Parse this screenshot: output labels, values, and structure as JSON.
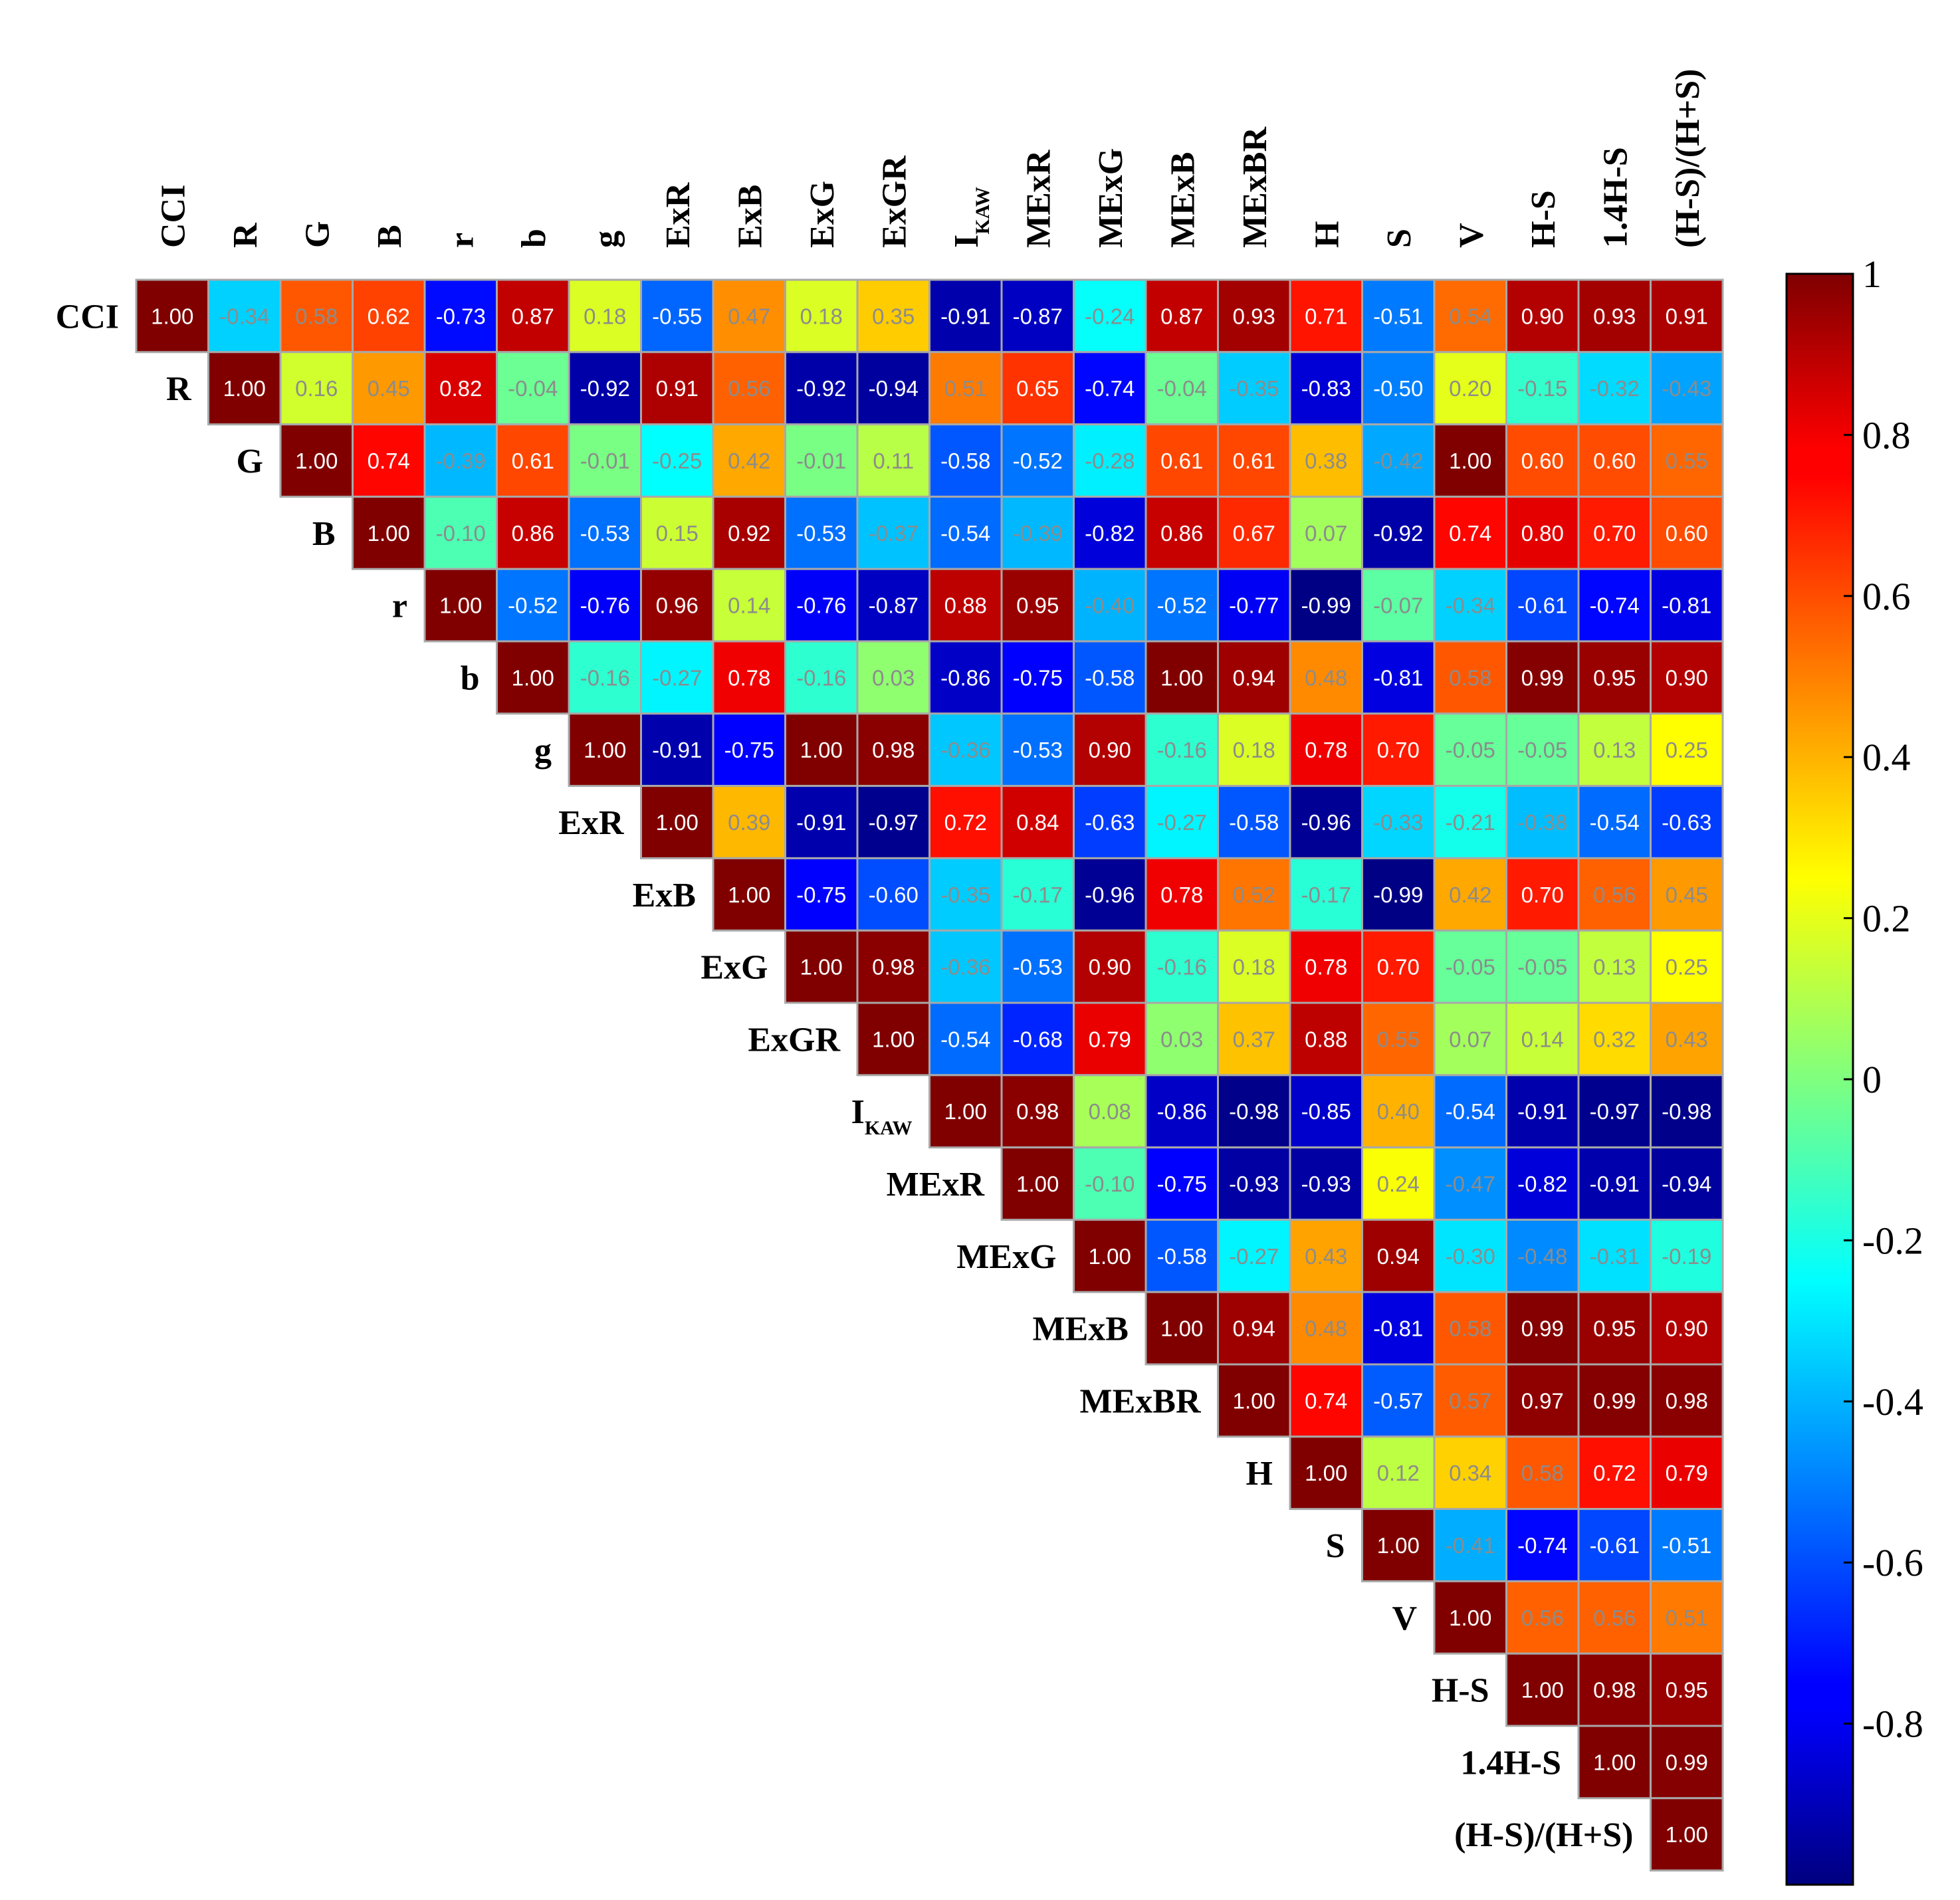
{
  "chart_data": {
    "type": "heatmap",
    "variables": [
      "CCI",
      "R",
      "G",
      "B",
      "r",
      "b",
      "g",
      "ExR",
      "ExB",
      "ExG",
      "ExGR",
      "I|KAW",
      "MExR",
      "MExG",
      "MExB",
      "MExBR",
      "H",
      "S",
      "V",
      "H-S",
      "1.4H-S",
      "(H-S)/(H+S)"
    ],
    "matrix": [
      [
        1.0,
        -0.34,
        0.58,
        0.62,
        -0.73,
        0.87,
        0.18,
        -0.55,
        0.47,
        0.18,
        0.35,
        -0.91,
        -0.87,
        -0.24,
        0.87,
        0.93,
        0.71,
        -0.51,
        0.54,
        0.9,
        0.93,
        0.91
      ],
      [
        null,
        1.0,
        0.16,
        0.45,
        0.82,
        -0.04,
        -0.92,
        0.91,
        0.56,
        -0.92,
        -0.94,
        0.51,
        0.65,
        -0.74,
        -0.04,
        -0.35,
        -0.83,
        -0.5,
        0.2,
        -0.15,
        -0.32,
        -0.43
      ],
      [
        null,
        null,
        1.0,
        0.74,
        -0.39,
        0.61,
        -0.01,
        -0.25,
        0.42,
        -0.01,
        0.11,
        -0.58,
        -0.52,
        -0.28,
        0.61,
        0.61,
        0.38,
        -0.42,
        1.0,
        0.6,
        0.6,
        0.55
      ],
      [
        null,
        null,
        null,
        1.0,
        -0.1,
        0.86,
        -0.53,
        0.15,
        0.92,
        -0.53,
        -0.37,
        -0.54,
        -0.39,
        -0.82,
        0.86,
        0.67,
        0.07,
        -0.92,
        0.74,
        0.8,
        0.7,
        0.6
      ],
      [
        null,
        null,
        null,
        null,
        1.0,
        -0.52,
        -0.76,
        0.96,
        0.14,
        -0.76,
        -0.87,
        0.88,
        0.95,
        -0.4,
        -0.52,
        -0.77,
        -0.99,
        -0.07,
        -0.34,
        -0.61,
        -0.74,
        -0.81
      ],
      [
        null,
        null,
        null,
        null,
        null,
        1.0,
        -0.16,
        -0.27,
        0.78,
        -0.16,
        0.03,
        -0.86,
        -0.75,
        -0.58,
        1.0,
        0.94,
        0.48,
        -0.81,
        0.58,
        0.99,
        0.95,
        0.9
      ],
      [
        null,
        null,
        null,
        null,
        null,
        null,
        1.0,
        -0.91,
        -0.75,
        1.0,
        0.98,
        -0.36,
        -0.53,
        0.9,
        -0.16,
        0.18,
        0.78,
        0.7,
        -0.05,
        -0.05,
        0.13,
        0.25
      ],
      [
        null,
        null,
        null,
        null,
        null,
        null,
        null,
        1.0,
        0.39,
        -0.91,
        -0.97,
        0.72,
        0.84,
        -0.63,
        -0.27,
        -0.58,
        -0.96,
        -0.33,
        -0.21,
        -0.38,
        -0.54,
        -0.63
      ],
      [
        null,
        null,
        null,
        null,
        null,
        null,
        null,
        null,
        1.0,
        -0.75,
        -0.6,
        -0.35,
        -0.17,
        -0.96,
        0.78,
        0.52,
        -0.17,
        -0.99,
        0.42,
        0.7,
        0.56,
        0.45
      ],
      [
        null,
        null,
        null,
        null,
        null,
        null,
        null,
        null,
        null,
        1.0,
        0.98,
        -0.36,
        -0.53,
        0.9,
        -0.16,
        0.18,
        0.78,
        0.7,
        -0.05,
        -0.05,
        0.13,
        0.25
      ],
      [
        null,
        null,
        null,
        null,
        null,
        null,
        null,
        null,
        null,
        null,
        1.0,
        -0.54,
        -0.68,
        0.79,
        0.03,
        0.37,
        0.88,
        0.55,
        0.07,
        0.14,
        0.32,
        0.43
      ],
      [
        null,
        null,
        null,
        null,
        null,
        null,
        null,
        null,
        null,
        null,
        null,
        1.0,
        0.98,
        0.08,
        -0.86,
        -0.98,
        -0.85,
        0.4,
        -0.54,
        -0.91,
        -0.97,
        -0.98
      ],
      [
        null,
        null,
        null,
        null,
        null,
        null,
        null,
        null,
        null,
        null,
        null,
        null,
        1.0,
        -0.1,
        -0.75,
        -0.93,
        -0.93,
        0.24,
        -0.47,
        -0.82,
        -0.91,
        -0.94
      ],
      [
        null,
        null,
        null,
        null,
        null,
        null,
        null,
        null,
        null,
        null,
        null,
        null,
        null,
        1.0,
        -0.58,
        -0.27,
        0.43,
        0.94,
        -0.3,
        -0.48,
        -0.31,
        -0.19
      ],
      [
        null,
        null,
        null,
        null,
        null,
        null,
        null,
        null,
        null,
        null,
        null,
        null,
        null,
        null,
        1.0,
        0.94,
        0.48,
        -0.81,
        0.58,
        0.99,
        0.95,
        0.9
      ],
      [
        null,
        null,
        null,
        null,
        null,
        null,
        null,
        null,
        null,
        null,
        null,
        null,
        null,
        null,
        null,
        1.0,
        0.74,
        -0.57,
        0.57,
        0.97,
        0.99,
        0.98
      ],
      [
        null,
        null,
        null,
        null,
        null,
        null,
        null,
        null,
        null,
        null,
        null,
        null,
        null,
        null,
        null,
        null,
        1.0,
        0.12,
        0.34,
        0.58,
        0.72,
        0.79
      ],
      [
        null,
        null,
        null,
        null,
        null,
        null,
        null,
        null,
        null,
        null,
        null,
        null,
        null,
        null,
        null,
        null,
        null,
        1.0,
        -0.41,
        -0.74,
        -0.61,
        -0.51
      ],
      [
        null,
        null,
        null,
        null,
        null,
        null,
        null,
        null,
        null,
        null,
        null,
        null,
        null,
        null,
        null,
        null,
        null,
        null,
        1.0,
        0.56,
        0.56,
        0.51
      ],
      [
        null,
        null,
        null,
        null,
        null,
        null,
        null,
        null,
        null,
        null,
        null,
        null,
        null,
        null,
        null,
        null,
        null,
        null,
        null,
        1.0,
        0.98,
        0.95
      ],
      [
        null,
        null,
        null,
        null,
        null,
        null,
        null,
        null,
        null,
        null,
        null,
        null,
        null,
        null,
        null,
        null,
        null,
        null,
        null,
        null,
        1.0,
        0.99
      ],
      [
        null,
        null,
        null,
        null,
        null,
        null,
        null,
        null,
        null,
        null,
        null,
        null,
        null,
        null,
        null,
        null,
        null,
        null,
        null,
        null,
        null,
        1.0
      ]
    ],
    "colorbar": {
      "colormap": "jet",
      "range": [
        -1,
        1
      ],
      "ticks": [
        -0.8,
        -0.6,
        -0.4,
        -0.2,
        0,
        0.2,
        0.4,
        0.6,
        0.8,
        1
      ],
      "tick_labels": [
        "-0.8",
        "-0.6",
        "-0.4",
        "-0.2",
        "0",
        "0.2",
        "0.4",
        "0.6",
        "0.8",
        "1"
      ],
      "placement": "right"
    },
    "value_format": "2 decimals",
    "layout": "upper-triangle",
    "row_labels_position": "left-diagonal",
    "col_labels_position": "top-rotated"
  }
}
